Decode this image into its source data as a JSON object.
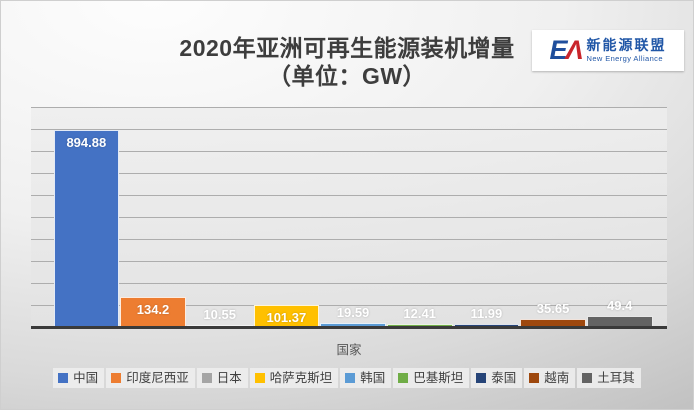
{
  "logo": {
    "monogram_e": "E",
    "monogram_a": "Λ",
    "cn_text": "新能源联盟",
    "en_text": "New Energy Alliance"
  },
  "chart_data": {
    "type": "bar",
    "title": "2020年亚洲可再生能源装机增量",
    "subtitle": "（单位：GW）",
    "xlabel": "国家",
    "categories": [
      "中国",
      "印度尼西亚",
      "日本",
      "哈萨克斯坦",
      "韩国",
      "巴基斯坦",
      "泰国",
      "越南",
      "土耳其"
    ],
    "values": [
      894.88,
      134.2,
      10.55,
      101.37,
      19.59,
      12.41,
      11.99,
      35.65,
      49.4
    ],
    "value_labels": [
      "894.88",
      "134.2",
      "10.55",
      "101.37",
      "19.59",
      "12.41",
      "11.99",
      "35.65",
      "49.4"
    ],
    "colors": [
      "#4472C4",
      "#ED7D31",
      "#A5A5A5",
      "#FFC000",
      "#5B9BD5",
      "#70AD47",
      "#264478",
      "#9E480E",
      "#636363"
    ],
    "ylim": [
      0,
      1000
    ],
    "gridline_step": 100,
    "grid": true,
    "legend_position": "bottom",
    "axis_color": "#3a3a3a",
    "label_color": "#ffffff"
  }
}
